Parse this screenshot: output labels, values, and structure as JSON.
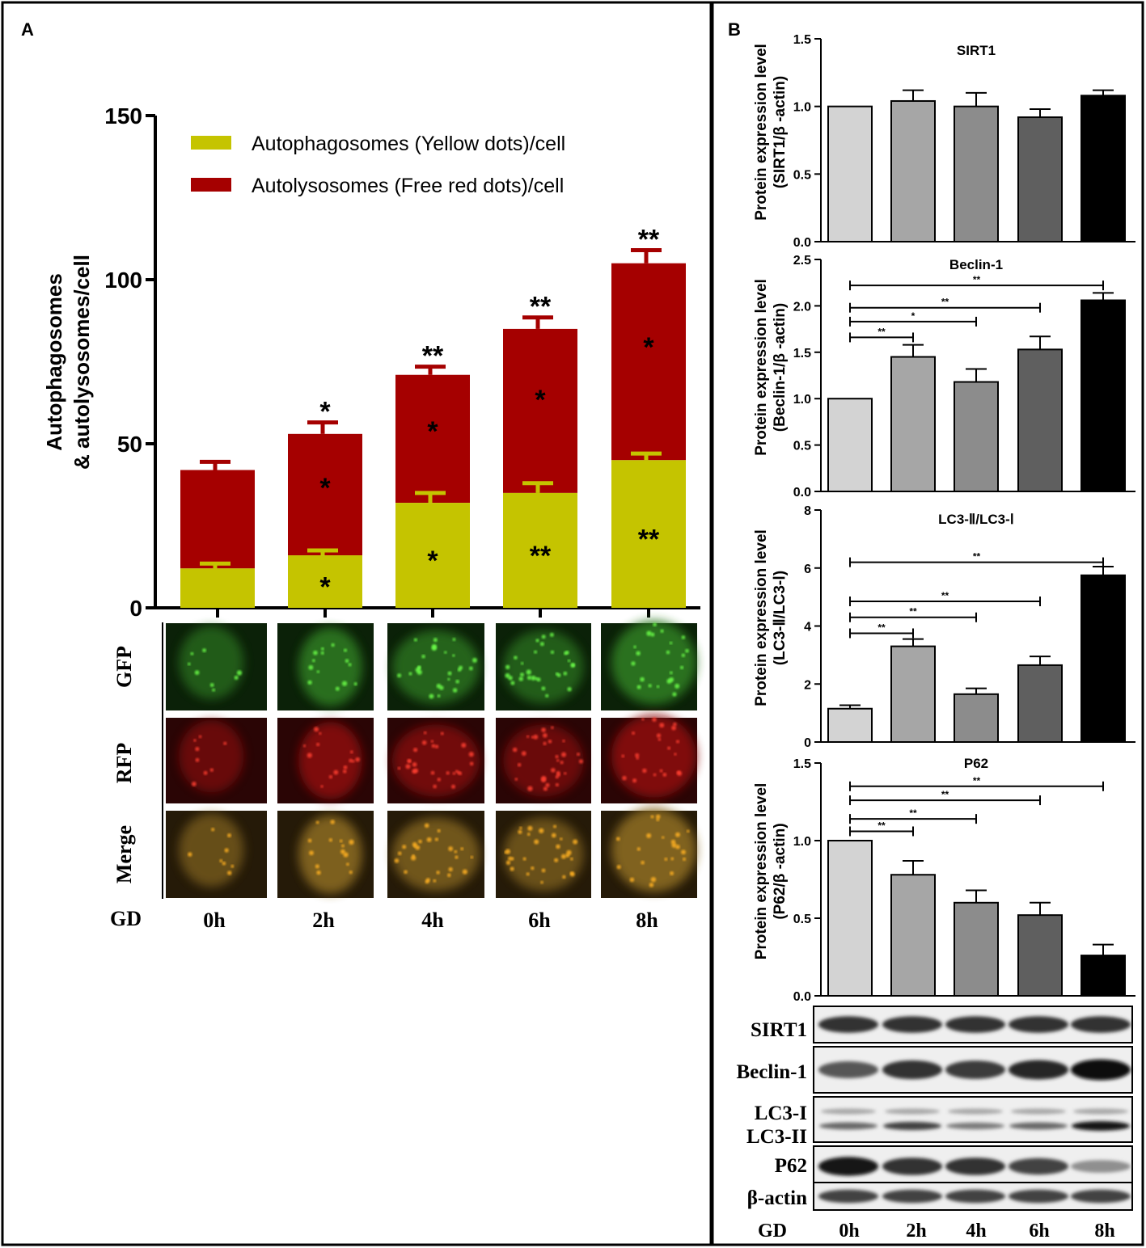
{
  "colors": {
    "autophagosome": "#c5c400",
    "autolysosome": "#a50000",
    "axis": "#000000",
    "bars_b": [
      "#d3d3d3",
      "#a6a6a6",
      "#8c8c8c",
      "#5f5f5f",
      "#000000"
    ]
  },
  "panel_labels": {
    "a": "A",
    "b": "B"
  },
  "chart_data": [
    {
      "id": "A",
      "type": "bar",
      "stacked": true,
      "categories": [
        "0h",
        "2h",
        "4h",
        "6h",
        "8h"
      ],
      "ylabel": [
        "Autophagosomes",
        "& autolysosomes/cell"
      ],
      "ylim": [
        0,
        150
      ],
      "yticks": [
        0,
        50,
        100,
        150
      ],
      "legend_position": "top-left",
      "series": [
        {
          "name": "Autophagosomes (Yellow dots)/cell",
          "values": [
            12,
            16,
            32,
            35,
            45
          ],
          "errors": [
            1.5,
            1.5,
            3,
            3,
            2
          ],
          "stars": [
            "",
            "*",
            "*",
            "**",
            "**"
          ]
        },
        {
          "name": "Autolysosomes (Free red dots)/cell",
          "values": [
            30,
            37,
            39,
            50,
            60
          ],
          "stars": [
            "",
            "*",
            "*",
            "*",
            "*"
          ]
        }
      ],
      "total_errors": [
        2.5,
        3.5,
        2.5,
        3.5,
        4
      ],
      "total_stars": [
        "",
        "*",
        "**",
        "**",
        "**"
      ]
    },
    {
      "id": "SIRT1",
      "type": "bar",
      "title": "SIRT1",
      "categories": [
        "0h",
        "2h",
        "4h",
        "6h",
        "8h"
      ],
      "values": [
        1.0,
        1.04,
        1.0,
        0.92,
        1.08
      ],
      "errors": [
        0,
        0.08,
        0.1,
        0.06,
        0.04
      ],
      "ylim": [
        0,
        1.5
      ],
      "yticks": [
        "0.0",
        "0.5",
        "1.0",
        "1.5"
      ],
      "ylabel": [
        "Protein expression level",
        "(SIRT1/β -actin)"
      ],
      "brackets": []
    },
    {
      "id": "Beclin1",
      "type": "bar",
      "title": "Beclin-1",
      "categories": [
        "0h",
        "2h",
        "4h",
        "6h",
        "8h"
      ],
      "values": [
        1.0,
        1.45,
        1.18,
        1.53,
        2.06
      ],
      "errors": [
        0,
        0.13,
        0.14,
        0.14,
        0.08
      ],
      "ylim": [
        0,
        2.5
      ],
      "yticks": [
        "0.0",
        "0.5",
        "1.0",
        "1.5",
        "2.0",
        "2.5"
      ],
      "ylabel": [
        "Protein expression level",
        "(Beclin-1/β -actin)"
      ],
      "brackets": [
        {
          "from": 0,
          "to": 4,
          "level": 2.22,
          "label": "**"
        },
        {
          "from": 0,
          "to": 3,
          "level": 1.98,
          "label": "**"
        },
        {
          "from": 0,
          "to": 2,
          "level": 1.83,
          "label": "*"
        },
        {
          "from": 0,
          "to": 1,
          "level": 1.66,
          "label": "**"
        }
      ]
    },
    {
      "id": "LC3",
      "type": "bar",
      "title": "LC3-Ⅱ/LC3-Ⅰ",
      "categories": [
        "0h",
        "2h",
        "4h",
        "6h",
        "8h"
      ],
      "values": [
        1.15,
        3.3,
        1.65,
        2.65,
        5.75
      ],
      "errors": [
        0.12,
        0.25,
        0.2,
        0.3,
        0.3
      ],
      "ylim": [
        0,
        8
      ],
      "yticks": [
        "0",
        "2",
        "4",
        "6",
        "8"
      ],
      "ylabel": [
        "Protein expression level",
        "(LC3-Ⅱ/LC3-Ⅰ)"
      ],
      "brackets": [
        {
          "from": 0,
          "to": 4,
          "level": 6.2,
          "label": "**"
        },
        {
          "from": 0,
          "to": 3,
          "level": 4.85,
          "label": "**"
        },
        {
          "from": 0,
          "to": 2,
          "level": 4.3,
          "label": "**"
        },
        {
          "from": 0,
          "to": 1,
          "level": 3.75,
          "label": "**"
        }
      ]
    },
    {
      "id": "P62",
      "type": "bar",
      "title": "P62",
      "categories": [
        "0h",
        "2h",
        "4h",
        "6h",
        "8h"
      ],
      "values": [
        1.0,
        0.78,
        0.6,
        0.52,
        0.26
      ],
      "errors": [
        0,
        0.09,
        0.08,
        0.08,
        0.07
      ],
      "ylim": [
        0,
        1.5
      ],
      "yticks": [
        "0.0",
        "0.5",
        "1.0",
        "1.5"
      ],
      "ylabel": [
        "Protein expression level",
        "(P62/β -actin)"
      ],
      "brackets": [
        {
          "from": 0,
          "to": 4,
          "level": 1.35,
          "label": "**"
        },
        {
          "from": 0,
          "to": 3,
          "level": 1.26,
          "label": "**"
        },
        {
          "from": 0,
          "to": 2,
          "level": 1.14,
          "label": "**"
        },
        {
          "from": 0,
          "to": 1,
          "level": 1.06,
          "label": "**"
        }
      ]
    }
  ],
  "micrographs": {
    "rows": [
      {
        "label": "GFP",
        "tone": "green"
      },
      {
        "label": "RFP",
        "tone": "red"
      },
      {
        "label": "Merge",
        "tone": "merge"
      }
    ],
    "group_label": "GD",
    "columns": [
      "0h",
      "2h",
      "4h",
      "6h",
      "8h"
    ]
  },
  "blots": {
    "rows": [
      {
        "labels": [
          "SIRT1"
        ],
        "intensity": [
          0.8,
          0.8,
          0.8,
          0.8,
          0.8
        ]
      },
      {
        "labels": [
          "Beclin-1"
        ],
        "intensity": [
          0.6,
          0.8,
          0.75,
          0.85,
          1.0
        ]
      },
      {
        "labels": [
          "LC3-I",
          "LC3-II"
        ],
        "intensity": [
          0.5,
          0.7,
          0.4,
          0.5,
          0.95
        ]
      },
      {
        "labels": [
          "P62"
        ],
        "intensity": [
          0.95,
          0.8,
          0.8,
          0.7,
          0.3
        ]
      },
      {
        "labels": [
          "β-actin"
        ],
        "intensity": [
          0.7,
          0.7,
          0.7,
          0.7,
          0.7
        ]
      }
    ],
    "group_label": "GD",
    "columns": [
      "0h",
      "2h",
      "4h",
      "6h",
      "8h"
    ]
  }
}
